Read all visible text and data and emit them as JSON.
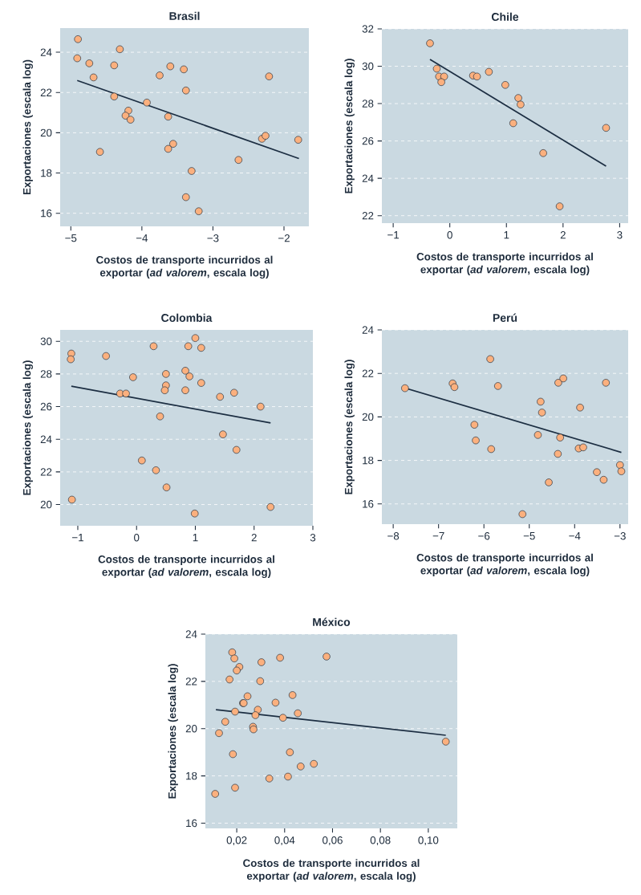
{
  "chart_data": [
    {
      "type": "scatter",
      "title": "Brasil",
      "xlabel": "Costos de transporte incurridos al exportar (*ad valorem*, escala log)",
      "ylabel": "Exportaciones (escala log)",
      "xlim": [
        -5.15,
        -1.65
      ],
      "ylim": [
        15.35,
        25.2
      ],
      "xticks": [
        {
          "value": -5,
          "label": "−5"
        },
        {
          "value": -4,
          "label": "−4"
        },
        {
          "value": -3,
          "label": "−3"
        },
        {
          "value": -2,
          "label": "−2"
        }
      ],
      "yticks": [
        16,
        18,
        20,
        22,
        24
      ],
      "grid": "y",
      "marker": "circle",
      "series": [
        {
          "type": "scatter",
          "color": "#fbb07e",
          "x": [
            -4.9,
            -4.91,
            -4.74,
            -4.68,
            -4.31,
            -4.39,
            -4.39,
            -4.19,
            -4.23,
            -4.16,
            -3.93,
            -4.59,
            -3.75,
            -3.6,
            -3.41,
            -3.38,
            -3.63,
            -3.56,
            -3.63,
            -3.3,
            -3.38,
            -3.2,
            -2.64,
            -2.31,
            -2.26,
            -2.21,
            -1.8
          ],
          "values": [
            24.65,
            23.7,
            23.45,
            22.75,
            24.15,
            23.35,
            21.8,
            21.1,
            20.85,
            20.65,
            21.5,
            19.05,
            22.85,
            23.3,
            23.15,
            22.1,
            20.8,
            19.45,
            19.2,
            18.1,
            16.8,
            16.1,
            18.65,
            19.7,
            19.85,
            22.8,
            19.65
          ]
        },
        {
          "type": "line",
          "marker": "none",
          "color": "#1c2e42",
          "x": [
            -4.91,
            -1.79
          ],
          "values": [
            22.6,
            18.72
          ]
        }
      ]
    },
    {
      "type": "scatter",
      "title": "Chile",
      "xlabel": "Costos de transporte incurridos al exportar (*ad valorem*, escala log)",
      "ylabel": "Exportaciones (escala log)",
      "xlim": [
        -1.2,
        3.15
      ],
      "ylim": [
        21.6,
        32
      ],
      "xticks": [
        {
          "value": -1,
          "label": "−1"
        },
        0,
        1,
        2,
        3
      ],
      "yticks": [
        22,
        24,
        26,
        28,
        30,
        32
      ],
      "grid": "y",
      "marker": "circle",
      "series": [
        {
          "type": "scatter",
          "color": "#fbb07e",
          "x": [
            -0.35,
            -0.23,
            -0.19,
            -0.1,
            -0.15,
            0.41,
            0.48,
            0.69,
            0.98,
            1.21,
            1.25,
            1.12,
            1.65,
            1.94,
            2.76
          ],
          "values": [
            31.23,
            29.87,
            29.45,
            29.45,
            29.15,
            29.5,
            29.45,
            29.7,
            29.0,
            28.3,
            27.95,
            26.95,
            25.35,
            22.5,
            26.7
          ]
        },
        {
          "type": "line",
          "marker": "none",
          "color": "#1c2e42",
          "x": [
            -0.35,
            2.76
          ],
          "values": [
            30.37,
            24.65
          ]
        }
      ]
    },
    {
      "type": "scatter",
      "title": "Colombia",
      "xlabel": "Costos de transporte incurridos al exportar (*ad valorem*, escala log)",
      "ylabel": "Exportaciones (escala log)",
      "xlim": [
        -1.3,
        3.0
      ],
      "ylim": [
        18.7,
        30.7
      ],
      "xticks": [
        {
          "value": -1,
          "label": "−1"
        },
        0,
        1,
        2,
        3
      ],
      "yticks": [
        20,
        22,
        24,
        26,
        28,
        30
      ],
      "grid": "y",
      "marker": "circle",
      "series": [
        {
          "type": "scatter",
          "color": "#fbb07e",
          "x": [
            -1.11,
            -1.12,
            -0.52,
            0.29,
            1.0,
            0.88,
            1.1,
            -0.06,
            0.5,
            0.83,
            0.9,
            1.1,
            0.5,
            0.48,
            0.83,
            -0.28,
            -0.18,
            1.42,
            1.66,
            2.11,
            0.4,
            1.47,
            1.7,
            0.09,
            0.33,
            0.51,
            -1.1,
            0.99,
            2.28
          ],
          "values": [
            29.25,
            28.9,
            29.1,
            29.7,
            30.2,
            29.7,
            29.6,
            27.8,
            28.0,
            28.2,
            27.85,
            27.45,
            27.3,
            27.0,
            27.0,
            26.8,
            26.8,
            26.6,
            26.85,
            26.0,
            25.4,
            24.3,
            23.35,
            22.7,
            22.1,
            21.05,
            20.3,
            19.45,
            19.85
          ]
        },
        {
          "type": "line",
          "marker": "none",
          "color": "#1c2e42",
          "x": [
            -1.11,
            2.28
          ],
          "values": [
            27.25,
            25.0
          ]
        }
      ]
    },
    {
      "type": "scatter",
      "title": "Perú",
      "xlabel": "Costos de transporte incurridos al exportar (*ad valorem*, escala log)",
      "ylabel": "Exportaciones (escala log)",
      "xlim": [
        -8.25,
        -2.82
      ],
      "ylim": [
        15.07,
        24
      ],
      "xticks": [
        {
          "value": -8,
          "label": "−8"
        },
        {
          "value": -7,
          "label": "−7"
        },
        {
          "value": -6,
          "label": "−6"
        },
        {
          "value": -5,
          "label": "−5"
        },
        {
          "value": -4,
          "label": "−4"
        },
        {
          "value": -3,
          "label": "−3"
        }
      ],
      "yticks": [
        16,
        18,
        20,
        22,
        24
      ],
      "grid": "y",
      "marker": "circle",
      "series": [
        {
          "type": "scatter",
          "color": "#fbb07e",
          "x": [
            -7.74,
            -6.69,
            -6.65,
            -5.86,
            -5.69,
            -6.21,
            -6.18,
            -5.84,
            -4.75,
            -4.72,
            -4.81,
            -4.32,
            -4.36,
            -4.25,
            -3.88,
            -3.91,
            -3.81,
            -4.37,
            -4.57,
            -5.15,
            -3.31,
            -3.51,
            -3.36,
            -3.0,
            -2.97
          ],
          "values": [
            21.32,
            21.54,
            21.37,
            22.66,
            21.42,
            19.64,
            18.92,
            18.52,
            20.7,
            20.2,
            19.17,
            19.05,
            21.57,
            21.77,
            20.43,
            18.55,
            18.6,
            18.3,
            16.99,
            15.53,
            21.57,
            17.46,
            17.11,
            17.79,
            17.5
          ]
        },
        {
          "type": "line",
          "marker": "none",
          "color": "#1c2e42",
          "x": [
            -7.74,
            -2.97
          ],
          "values": [
            21.33,
            18.37
          ]
        }
      ]
    },
    {
      "type": "scatter",
      "title": "México",
      "xlabel": "Costos de transporte incurridos al exportar (*ad valorem*, escala log)",
      "ylabel": "Exportaciones (escala log)",
      "xlim": [
        0.0069,
        0.1121
      ],
      "ylim": [
        15.78,
        24
      ],
      "xticks": [
        {
          "value": 0.02,
          "label": "0,02"
        },
        {
          "value": 0.04,
          "label": "0,04"
        },
        {
          "value": 0.06,
          "label": "0,06"
        },
        {
          "value": 0.08,
          "label": "0,08"
        },
        {
          "value": 0.1,
          "label": "0,10"
        }
      ],
      "yticks": [
        16,
        18,
        20,
        22,
        24
      ],
      "grid": "y",
      "marker": "circle",
      "series": [
        {
          "type": "scatter",
          "color": "#fbb07e",
          "x": [
            0.0181,
            0.019,
            0.0211,
            0.02,
            0.017,
            0.0303,
            0.0298,
            0.0381,
            0.0575,
            0.0245,
            0.0226,
            0.0229,
            0.0362,
            0.0433,
            0.0193,
            0.0288,
            0.0278,
            0.0455,
            0.0393,
            0.0152,
            0.0268,
            0.027,
            0.0126,
            0.0184,
            0.0422,
            0.0522,
            0.0467,
            0.0336,
            0.0414,
            0.0193,
            0.011,
            0.1073
          ],
          "values": [
            23.23,
            22.97,
            22.61,
            22.46,
            22.08,
            22.81,
            22.01,
            23.0,
            23.05,
            21.37,
            21.08,
            21.08,
            21.1,
            21.42,
            20.72,
            20.8,
            20.57,
            20.65,
            20.46,
            20.29,
            20.08,
            19.97,
            19.81,
            18.92,
            19.0,
            18.51,
            18.4,
            17.89,
            17.97,
            17.5,
            17.24,
            19.45
          ]
        },
        {
          "type": "line",
          "marker": "none",
          "color": "#1c2e42",
          "x": [
            0.0113,
            0.1073
          ],
          "values": [
            20.8,
            19.72
          ]
        }
      ]
    }
  ]
}
